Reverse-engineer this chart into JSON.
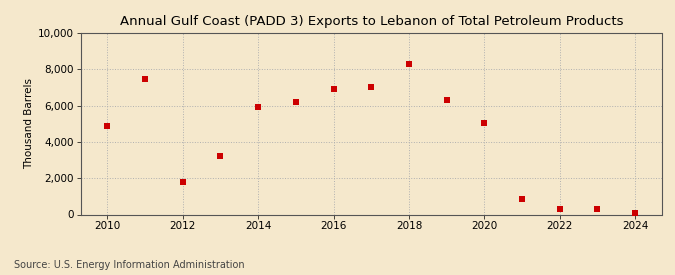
{
  "title": "Annual Gulf Coast (PADD 3) Exports to Lebanon of Total Petroleum Products",
  "ylabel": "Thousand Barrels",
  "source": "Source: U.S. Energy Information Administration",
  "background_color": "#f5e8cc",
  "plot_bg_color": "#f5e8cc",
  "marker_color": "#cc0000",
  "marker": "s",
  "marker_size": 4,
  "xlim": [
    2009.3,
    2024.7
  ],
  "ylim": [
    0,
    10000
  ],
  "yticks": [
    0,
    2000,
    4000,
    6000,
    8000,
    10000
  ],
  "xticks": [
    2010,
    2012,
    2014,
    2016,
    2018,
    2020,
    2022,
    2024
  ],
  "years": [
    2010,
    2011,
    2012,
    2013,
    2014,
    2015,
    2016,
    2017,
    2018,
    2019,
    2020,
    2021,
    2022,
    2023,
    2024
  ],
  "values": [
    4900,
    7450,
    1800,
    3200,
    5900,
    6200,
    6900,
    7050,
    8300,
    6300,
    5050,
    850,
    300,
    280,
    90
  ]
}
